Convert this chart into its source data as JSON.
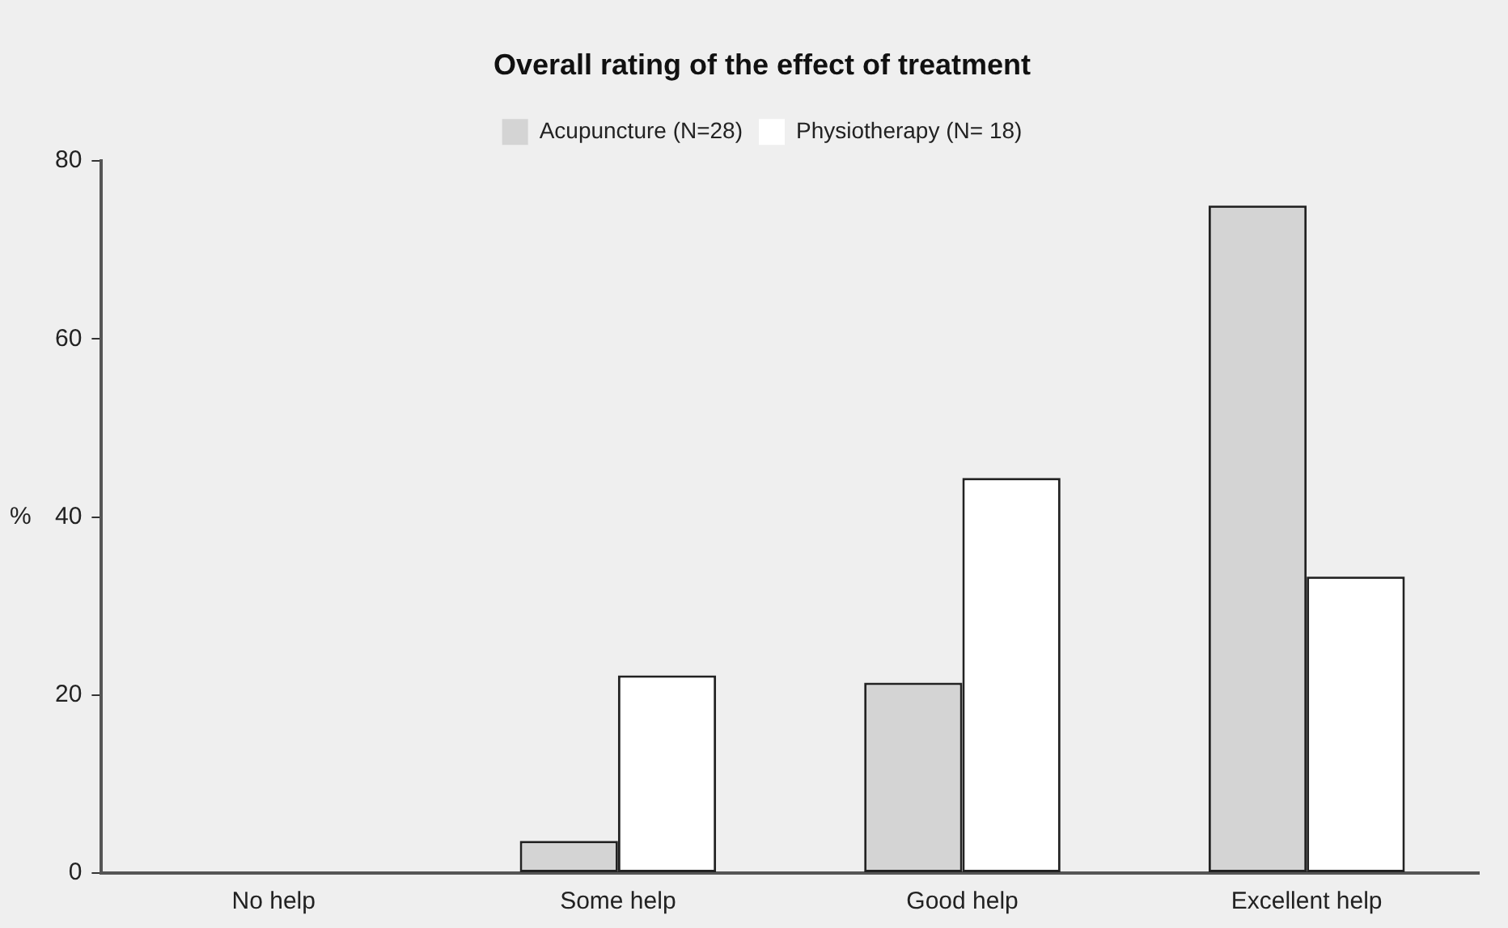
{
  "chart_data": {
    "type": "bar",
    "title": "Overall rating of the effect of treatment",
    "ylabel": "%",
    "categories": [
      "No help",
      "Some help",
      "Good help",
      "Excellent help"
    ],
    "series": [
      {
        "name": "Acupuncture (N=28)",
        "color": "#d4d4d4",
        "values": [
          0,
          3.6,
          21.4,
          75
        ]
      },
      {
        "name": "Physiotherapy (N= 18)",
        "color": "#ffffff",
        "values": [
          0,
          22.2,
          44.4,
          33.3
        ]
      }
    ],
    "ylim": [
      0,
      80
    ],
    "yticks": [
      0,
      20,
      40,
      60,
      80
    ],
    "grid": false,
    "legend": "top"
  }
}
